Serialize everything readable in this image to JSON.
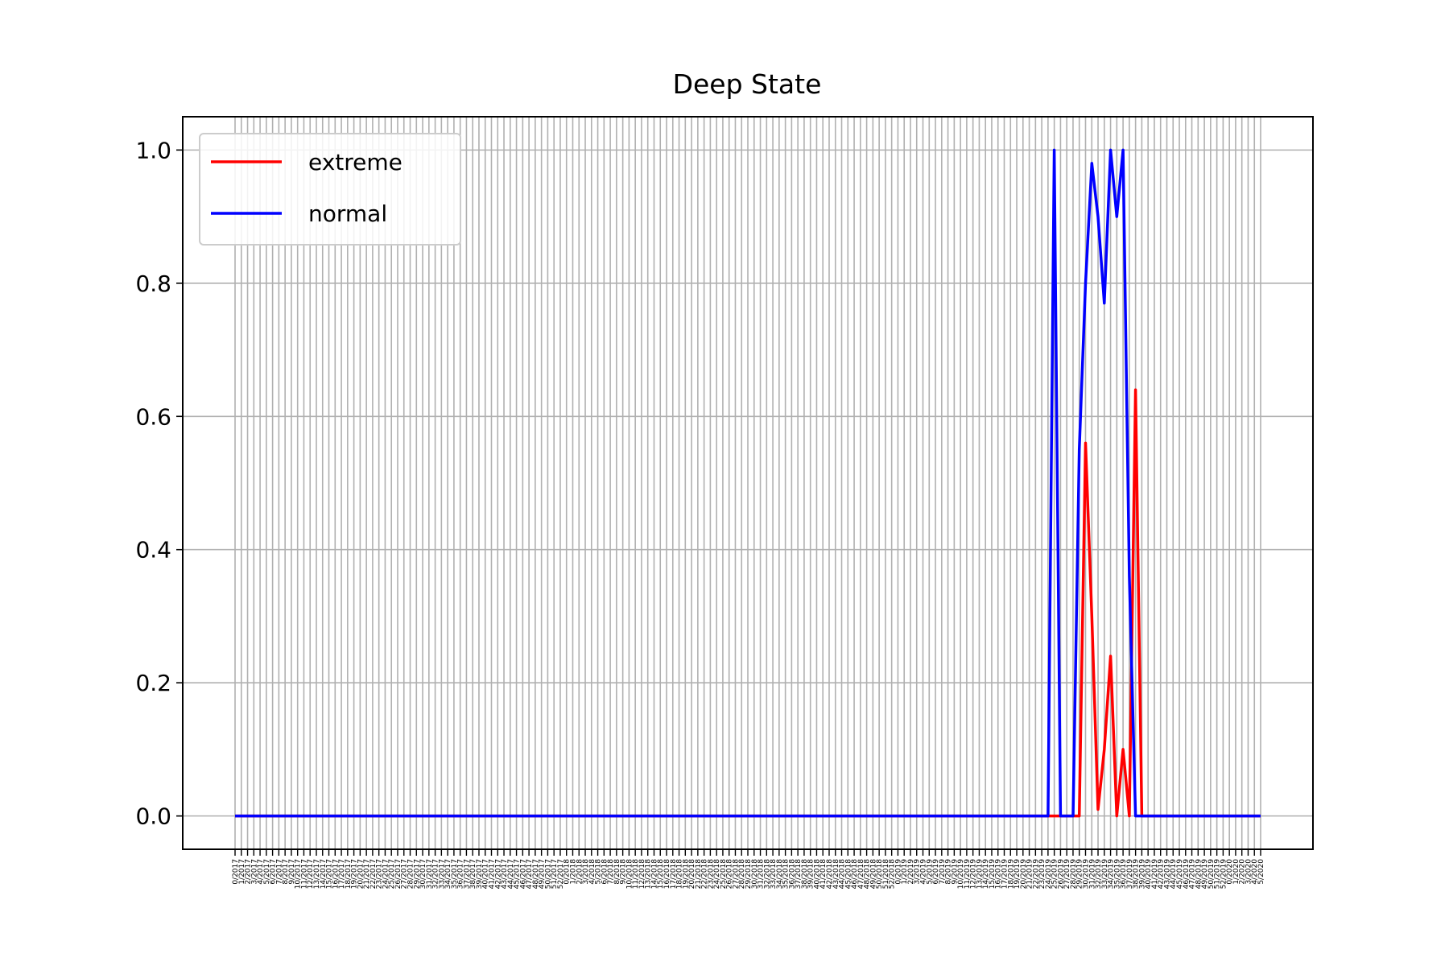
{
  "chart_data": {
    "type": "line",
    "title": "Deep State",
    "xlabel": "",
    "ylabel": "",
    "ylim": [
      -0.05,
      1.05
    ],
    "yticks": [
      "0.0",
      "0.2",
      "0.4",
      "0.6",
      "0.8",
      "1.0"
    ],
    "grid": true,
    "legend_position": "top-left",
    "x_start_week": 0,
    "x_start_year": 2017,
    "x_count": 165,
    "series": [
      {
        "name": "extreme",
        "color": "#ff0000",
        "points": [
          [
            0,
            0.0
          ],
          [
            131,
            0.0
          ],
          [
            132,
            0.0
          ],
          [
            133,
            0.0
          ],
          [
            134,
            0.0
          ],
          [
            135,
            0.0
          ],
          [
            136,
            0.56
          ],
          [
            137,
            0.3
          ],
          [
            138,
            0.01
          ],
          [
            139,
            0.1
          ],
          [
            140,
            0.24
          ],
          [
            141,
            0.0
          ],
          [
            142,
            0.1
          ],
          [
            143,
            0.0
          ],
          [
            144,
            0.64
          ],
          [
            145,
            0.0
          ],
          [
            164,
            0.0
          ]
        ]
      },
      {
        "name": "normal",
        "color": "#0000ff",
        "points": [
          [
            0,
            0.0
          ],
          [
            130,
            0.0
          ],
          [
            131,
            1.0
          ],
          [
            132,
            0.0
          ],
          [
            133,
            0.0
          ],
          [
            134,
            0.0
          ],
          [
            135,
            0.55
          ],
          [
            136,
            0.8
          ],
          [
            137,
            0.98
          ],
          [
            138,
            0.9
          ],
          [
            139,
            0.77
          ],
          [
            140,
            1.0
          ],
          [
            141,
            0.9
          ],
          [
            142,
            1.0
          ],
          [
            143,
            0.36
          ],
          [
            144,
            0.0
          ],
          [
            164,
            0.0
          ]
        ]
      }
    ]
  }
}
